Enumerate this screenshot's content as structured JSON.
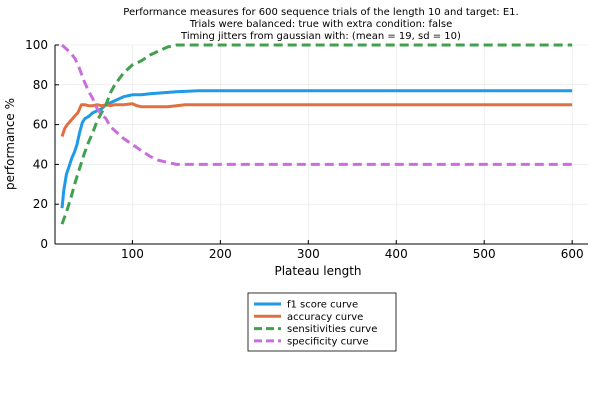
{
  "chart_data": {
    "type": "line",
    "title_lines": [
      "Performance measures for 600 sequence trials of the length 10 and target: E1.",
      "Trials were balanced: true with extra condition: false",
      "Timing jitters from gaussian with: (mean = 19, sd = 10)"
    ],
    "xlabel": "Plateau length",
    "ylabel": "performance %",
    "xlim": [
      12,
      618
    ],
    "ylim": [
      0,
      100
    ],
    "xticks": [
      100,
      200,
      300,
      400,
      500,
      600
    ],
    "yticks": [
      0,
      20,
      40,
      60,
      80,
      100
    ],
    "grid": true,
    "legend_position": "bottom-center",
    "series": [
      {
        "name": "f1 score curve",
        "color": "#1f9ae6",
        "dash": "solid",
        "x": [
          20,
          22,
          25,
          28,
          31,
          34,
          37,
          40,
          43,
          46,
          50,
          55,
          60,
          65,
          70,
          75,
          80,
          90,
          100,
          110,
          120,
          135,
          150,
          175,
          200,
          300,
          400,
          500,
          600
        ],
        "y": [
          18,
          27,
          35,
          39,
          43,
          46,
          50,
          56,
          61,
          63,
          64,
          66,
          67,
          68,
          70,
          71,
          72,
          74,
          75,
          75,
          75.5,
          76,
          76.5,
          77,
          77,
          77,
          77,
          77,
          77
        ]
      },
      {
        "name": "accuracy curve",
        "color": "#e0703f",
        "dash": "solid",
        "x": [
          20,
          23,
          26,
          30,
          34,
          38,
          42,
          46,
          50,
          55,
          60,
          65,
          70,
          75,
          80,
          90,
          100,
          105,
          110,
          120,
          140,
          160,
          200,
          300,
          400,
          500,
          600
        ],
        "y": [
          54,
          58,
          60,
          62,
          64,
          66,
          70,
          70,
          69.5,
          69.5,
          70,
          69.5,
          70,
          69.5,
          70,
          70,
          70.5,
          69.5,
          69,
          69,
          69,
          70,
          70,
          70,
          70,
          70,
          70
        ]
      },
      {
        "name": "sensitivities curve",
        "color": "#3fa04d",
        "dash": "dashed",
        "x": [
          20,
          25,
          30,
          35,
          40,
          45,
          50,
          55,
          60,
          65,
          70,
          75,
          80,
          90,
          100,
          110,
          120,
          130,
          140,
          150,
          200,
          300,
          400,
          500,
          600
        ],
        "y": [
          10,
          16,
          23,
          31,
          38,
          45,
          51,
          56,
          62,
          66,
          70,
          76,
          80,
          86,
          90,
          92,
          95,
          97,
          99,
          100,
          100,
          100,
          100,
          100,
          100
        ]
      },
      {
        "name": "specificity curve",
        "color": "#c86fdb",
        "dash": "dashed",
        "x": [
          20,
          25,
          30,
          35,
          40,
          45,
          50,
          55,
          60,
          65,
          70,
          75,
          80,
          90,
          100,
          110,
          120,
          130,
          140,
          150,
          200,
          300,
          400,
          500,
          600
        ],
        "y": [
          100,
          98,
          96,
          93,
          88,
          82,
          77,
          73,
          68,
          65,
          63,
          59,
          57,
          53,
          50,
          47,
          44,
          42,
          41,
          40,
          40,
          40,
          40,
          40,
          40
        ]
      }
    ]
  }
}
